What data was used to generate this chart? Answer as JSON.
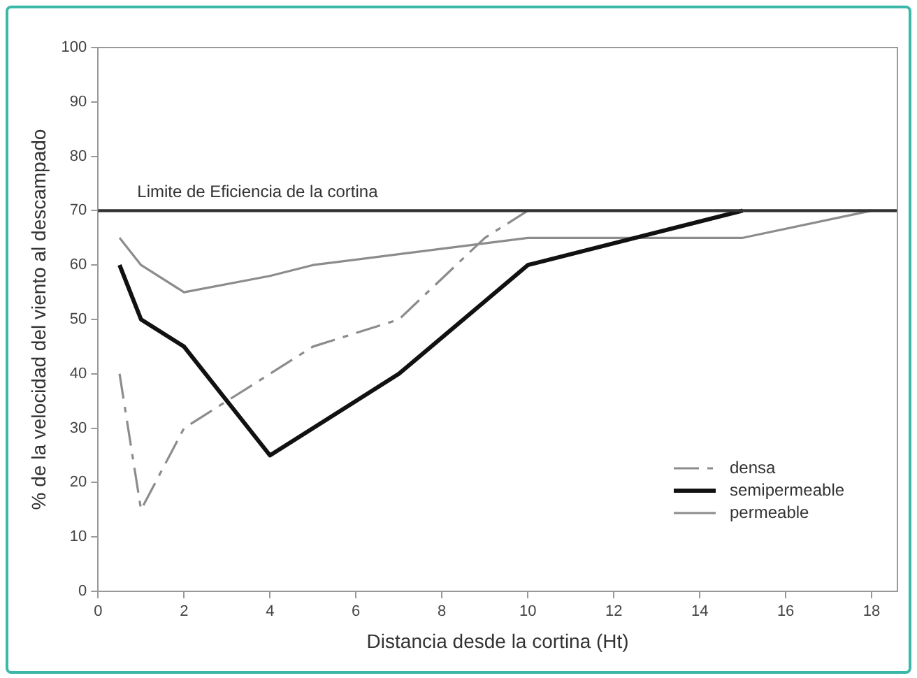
{
  "chart_data": {
    "type": "line",
    "xlabel": "Distancia desde la cortina (Ht)",
    "ylabel": "% de la velocidad del viento al descampado",
    "xlim": [
      0,
      18.6
    ],
    "xticks": [
      0,
      2,
      4,
      6,
      8,
      10,
      12,
      14,
      16,
      18
    ],
    "ylim": [
      0,
      100
    ],
    "yticks": [
      0,
      10,
      20,
      30,
      40,
      50,
      60,
      70,
      80,
      90,
      100
    ],
    "grid": false,
    "legend": "bottom right",
    "marker": "none",
    "ref_lines": [
      {
        "axis": "y",
        "value": 70,
        "label": "Limite de Eficiencia de la cortina",
        "color": "#333333"
      }
    ],
    "series": [
      {
        "name": "densa",
        "color": "#8c8c8c",
        "line_style": "dashed",
        "x": [
          0.5,
          1,
          2,
          4,
          5,
          7,
          9,
          10
        ],
        "values": [
          40,
          15,
          30,
          40,
          45,
          50,
          65,
          70
        ]
      },
      {
        "name": "semipermeable",
        "color": "#111111",
        "line_style": "solid",
        "x": [
          0.5,
          1,
          2,
          4,
          7,
          10,
          15
        ],
        "values": [
          60,
          50,
          45,
          25,
          40,
          60,
          70
        ]
      },
      {
        "name": "permeable",
        "color": "#8c8c8c",
        "line_style": "solid",
        "x": [
          0.5,
          1,
          2,
          4,
          5,
          7,
          10,
          15,
          18
        ],
        "values": [
          65,
          60,
          55,
          58,
          60,
          62,
          65,
          65,
          70
        ]
      }
    ]
  }
}
